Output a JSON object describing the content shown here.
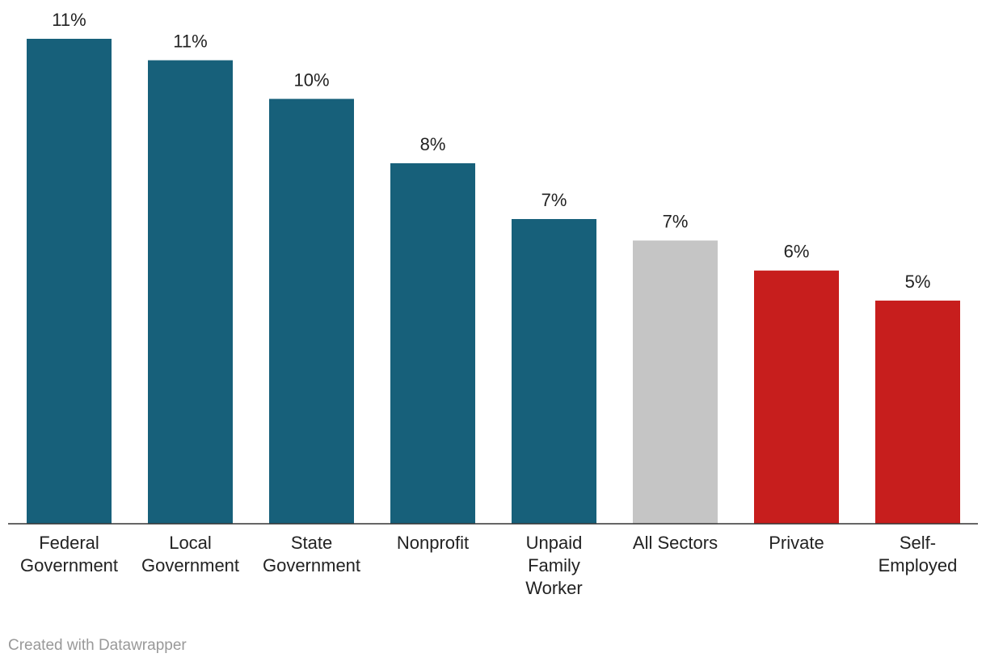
{
  "chart_data": {
    "type": "bar",
    "categories": [
      "Federal Government",
      "Local Government",
      "State Government",
      "Nonprofit",
      "Unpaid Family Worker",
      "All Sectors",
      "Private",
      "Self-Employed"
    ],
    "values": [
      11.3,
      10.8,
      9.9,
      8.4,
      7.1,
      6.6,
      5.9,
      5.2
    ],
    "value_labels": [
      "11%",
      "11%",
      "10%",
      "8%",
      "7%",
      "7%",
      "6%",
      "5%"
    ],
    "colors": [
      "#17607a",
      "#17607a",
      "#17607a",
      "#17607a",
      "#17607a",
      "#c5c5c5",
      "#c71e1d",
      "#c71e1d"
    ]
  },
  "credit": "Created with Datawrapper"
}
